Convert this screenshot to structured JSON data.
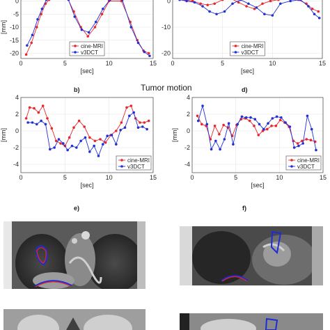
{
  "panel_letters": {
    "b": "b)",
    "d": "d)",
    "e": "e)",
    "f": "f)"
  },
  "section_title": "Tumor motion",
  "colors": {
    "cine_mri": "#e8262b",
    "v3dct": "#2230d6"
  },
  "chart_data": [
    {
      "id": "a",
      "type": "line",
      "xlabel": "[sec]",
      "ylabel": "[mm]",
      "xlim": [
        0,
        15
      ],
      "ylim": [
        -22,
        2
      ],
      "xticks": [
        0,
        5,
        10,
        15
      ],
      "yticks": [
        -20,
        -15,
        -10,
        -5,
        0
      ],
      "legend": {
        "position": "bottom-center",
        "entries": [
          "cine-MRI",
          "v3DCT"
        ]
      },
      "series": [
        {
          "name": "cine-MRI",
          "color": "#e8262b",
          "x": [
            0.6,
            1.2,
            1.8,
            2.3,
            2.8,
            3.2,
            3.7,
            5.3,
            6.0,
            6.8,
            7.6,
            8.4,
            9.2,
            10.0,
            11.4,
            12.4,
            13.2,
            13.9,
            14.5
          ],
          "y": [
            -20.5,
            -16,
            -10,
            -5,
            -1,
            0.5,
            1,
            1,
            -4,
            -10,
            -13.5,
            -10,
            -5,
            0,
            0,
            -8,
            -15,
            -19,
            -20
          ]
        },
        {
          "name": "v3DCT",
          "color": "#2230d6",
          "x": [
            0.7,
            1.3,
            1.9,
            2.4,
            2.9,
            3.4,
            3.9,
            5.4,
            6.1,
            6.9,
            7.7,
            8.5,
            9.3,
            10.1,
            11.5,
            12.5,
            13.3,
            14.0,
            14.6
          ],
          "y": [
            -17,
            -13,
            -7,
            -3,
            0.5,
            1,
            1,
            0.5,
            -6,
            -11,
            -12,
            -8,
            -3,
            0.5,
            0.5,
            -10,
            -16,
            -19.5,
            -21
          ]
        }
      ]
    },
    {
      "id": "c",
      "type": "line",
      "xlabel": "[sec]",
      "ylabel": "",
      "xlim": [
        0,
        15
      ],
      "ylim": [
        -22,
        2
      ],
      "xticks": [
        0,
        5,
        10,
        15
      ],
      "yticks": [
        -20,
        -10,
        0
      ],
      "legend": {
        "position": "bottom-center",
        "entries": [
          "cine-MRI",
          "v3DCT"
        ]
      },
      "series": [
        {
          "name": "cine-MRI",
          "color": "#e8262b",
          "x": [
            0.6,
            1.2,
            2.0,
            2.8,
            3.5,
            4.2,
            5.0,
            5.8,
            6.6,
            7.4,
            8.2,
            9.0,
            9.8,
            10.6,
            11.6,
            12.6,
            13.4,
            14.0,
            14.6
          ],
          "y": [
            1,
            0.5,
            0,
            -1,
            -1.5,
            -1,
            0.5,
            1,
            -0.5,
            -2,
            -3,
            -1,
            0,
            0.5,
            1,
            0.5,
            -1,
            -3,
            -4
          ]
        },
        {
          "name": "v3DCT",
          "color": "#2230d6",
          "x": [
            0.7,
            1.4,
            2.2,
            3.0,
            3.7,
            4.4,
            5.2,
            6.0,
            6.8,
            7.6,
            8.4,
            9.2,
            10.0,
            10.8,
            11.8,
            12.8,
            13.6,
            14.2,
            14.7
          ],
          "y": [
            0.5,
            0,
            -0.5,
            -2,
            -4,
            -5,
            -4,
            -1,
            0.5,
            -1,
            -2.5,
            -5,
            -5.5,
            -1,
            0,
            0.5,
            -2,
            -5,
            -6.5
          ]
        }
      ]
    },
    {
      "id": "b",
      "type": "line",
      "xlabel": "[sec]",
      "ylabel": "[mm]",
      "xlim": [
        0,
        15
      ],
      "ylim": [
        -5,
        4
      ],
      "xticks": [
        0,
        5,
        10,
        15
      ],
      "yticks": [
        -4,
        -2,
        0,
        2,
        4
      ],
      "legend": {
        "position": "bottom-right",
        "entries": [
          "cine-MRI",
          "v3DCT"
        ]
      },
      "series": [
        {
          "name": "cine-MRI",
          "color": "#e8262b",
          "x": [
            0.6,
            1.0,
            1.5,
            2.0,
            2.5,
            3.0,
            3.5,
            4.0,
            4.5,
            5.0,
            5.5,
            6.0,
            6.6,
            7.2,
            7.8,
            8.4,
            9.0,
            9.6,
            10.2,
            10.8,
            11.4,
            12.0,
            12.5,
            13.0,
            13.5,
            14.0,
            14.5
          ],
          "y": [
            1.5,
            2.8,
            2.7,
            2.2,
            3.0,
            1.5,
            0.3,
            -1.2,
            -1.5,
            -1.8,
            -0.8,
            0.4,
            1.2,
            0.5,
            -0.8,
            -1.2,
            -1.0,
            -1.4,
            -0.5,
            0,
            1.0,
            2.8,
            3.0,
            1.5,
            1.0,
            1.0,
            1.2
          ]
        },
        {
          "name": "v3DCT",
          "color": "#2230d6",
          "x": [
            0.8,
            1.3,
            1.8,
            2.3,
            2.8,
            3.3,
            3.8,
            4.3,
            4.8,
            5.3,
            5.8,
            6.3,
            6.8,
            7.3,
            7.8,
            8.3,
            8.8,
            9.3,
            9.8,
            10.3,
            10.8,
            11.3,
            11.8,
            12.3,
            12.8,
            13.3,
            13.8,
            14.3
          ],
          "y": [
            1.0,
            1.0,
            0.8,
            1.2,
            0.8,
            -2.2,
            -2.0,
            -1.0,
            -1.5,
            -2.3,
            -1.8,
            -2.0,
            -1.2,
            -0.8,
            -2.5,
            -1.8,
            -3.0,
            -1.6,
            -0.6,
            -0.5,
            -1.6,
            0.1,
            0.4,
            1.8,
            2.2,
            0.4,
            0.5,
            0.2
          ]
        }
      ]
    },
    {
      "id": "d",
      "type": "line",
      "xlabel": "[sec]",
      "ylabel": "[mm]",
      "xlim": [
        0,
        15
      ],
      "ylim": [
        -5,
        4
      ],
      "xticks": [
        0,
        5,
        10,
        15
      ],
      "yticks": [
        -4,
        -2,
        0,
        2,
        4
      ],
      "legend": {
        "position": "bottom-right",
        "entries": [
          "cine-MRI",
          "v3DCT"
        ]
      },
      "series": [
        {
          "name": "cine-MRI",
          "color": "#e8262b",
          "x": [
            0.6,
            1.1,
            1.6,
            2.1,
            2.6,
            3.1,
            3.6,
            4.1,
            4.6,
            5.1,
            5.6,
            6.1,
            6.6,
            7.1,
            7.6,
            8.1,
            8.6,
            9.1,
            9.6,
            10.1,
            10.6,
            11.1,
            11.6,
            12.1,
            12.6,
            13.1,
            13.6,
            14.1
          ],
          "y": [
            1.8,
            0.8,
            0.6,
            -1.0,
            0.6,
            -0.4,
            0.7,
            0.4,
            -0.6,
            0.7,
            1.4,
            1.5,
            1.2,
            0.6,
            -0.5,
            0,
            0.2,
            0.6,
            0.6,
            1.3,
            1.0,
            0.5,
            -1.2,
            -1.5,
            -1.2,
            -1.0,
            -1.1,
            -1.3
          ]
        },
        {
          "name": "v3DCT",
          "color": "#2230d6",
          "x": [
            0.7,
            1.2,
            1.7,
            2.2,
            2.7,
            3.2,
            3.7,
            4.2,
            4.7,
            5.2,
            5.7,
            6.2,
            6.7,
            7.2,
            7.7,
            8.2,
            8.7,
            9.2,
            9.7,
            10.2,
            10.7,
            11.2,
            11.7,
            12.2,
            12.7,
            13.2,
            13.7,
            14.2
          ],
          "y": [
            1.2,
            3.0,
            0.8,
            -2.2,
            -1.2,
            -2.2,
            -1.0,
            0.9,
            -1.6,
            0.8,
            1.7,
            1.6,
            1.6,
            1.4,
            0.8,
            0.2,
            0.9,
            1.5,
            1.7,
            1.6,
            1.0,
            0.5,
            -2.0,
            -1.8,
            -1.5,
            1.8,
            0.2,
            -2.3
          ]
        }
      ]
    }
  ]
}
